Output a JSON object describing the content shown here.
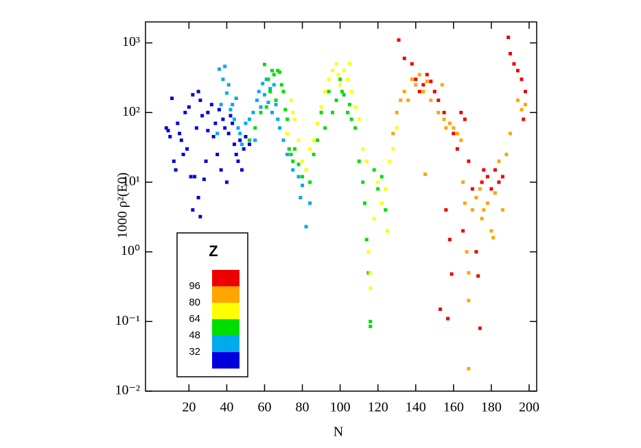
{
  "chart_data": {
    "type": "scatter",
    "x_label": "N",
    "y_label": "1000 ρ²(E0)",
    "log_y": true,
    "xlim": [
      -3,
      204
    ],
    "ylim": [
      0.01,
      2000
    ],
    "xticks": [
      20,
      40,
      60,
      80,
      100,
      120,
      140,
      160,
      180,
      200
    ],
    "yticks": [
      {
        "value": 0.01,
        "label": "10⁻²"
      },
      {
        "value": 0.1,
        "label": "10⁻¹"
      },
      {
        "value": 1,
        "label": "10⁰"
      },
      {
        "value": 10,
        "label": "10¹"
      },
      {
        "value": 100,
        "label": "10²"
      },
      {
        "value": 1000,
        "label": "10³"
      }
    ],
    "colorbar": {
      "title": "Z",
      "ticks": [
        96,
        80,
        64,
        48,
        32
      ]
    },
    "series": [
      {
        "color": "#0000dd",
        "x": [
          8,
          9,
          10,
          11,
          12,
          13,
          14,
          15,
          16,
          17,
          18,
          19,
          20,
          21,
          22,
          22,
          23,
          24,
          25,
          25,
          26,
          26,
          27,
          28,
          29,
          30,
          30,
          32,
          33,
          34,
          35,
          36,
          37,
          38,
          39,
          40,
          41,
          42,
          43,
          44,
          45,
          46,
          47,
          48,
          49,
          50,
          52
        ],
        "values": [
          60,
          55,
          45,
          160,
          20,
          15,
          70,
          50,
          40,
          25,
          100,
          30,
          120,
          12,
          4,
          180,
          12,
          60,
          200,
          6,
          3.2,
          150,
          90,
          11,
          20,
          100,
          55,
          130,
          45,
          70,
          25,
          110,
          15,
          80,
          60,
          10,
          50,
          90,
          70,
          35,
          25,
          20,
          40,
          15,
          30,
          45,
          35
        ]
      },
      {
        "color": "#00aaee",
        "x": [
          35,
          36,
          37,
          38,
          39,
          40,
          41,
          42,
          43,
          44,
          45,
          46,
          47,
          48,
          50,
          52,
          54,
          55,
          56,
          57,
          58,
          59,
          60,
          61,
          62,
          63,
          64,
          65,
          66,
          67,
          68,
          70,
          72,
          75,
          78,
          80,
          82,
          79,
          84
        ],
        "values": [
          50,
          420,
          130,
          300,
          460,
          190,
          250,
          110,
          130,
          80,
          160,
          60,
          50,
          35,
          70,
          80,
          100,
          40,
          150,
          200,
          120,
          260,
          180,
          300,
          140,
          220,
          100,
          250,
          130,
          80,
          60,
          40,
          25,
          15,
          12,
          9,
          2.3,
          6,
          5
        ]
      },
      {
        "color": "#00dd00",
        "x": [
          52,
          55,
          58,
          60,
          61,
          62,
          63,
          64,
          65,
          66,
          67,
          68,
          69,
          70,
          71,
          72,
          73,
          74,
          75,
          76,
          78,
          80,
          82,
          84,
          86,
          88,
          90,
          92,
          94,
          96,
          98,
          100,
          101,
          102,
          104,
          105,
          106,
          108,
          110,
          112,
          113,
          114,
          115,
          116,
          116,
          118,
          120,
          122,
          124
        ],
        "values": [
          40,
          60,
          100,
          490,
          120,
          300,
          200,
          400,
          350,
          150,
          400,
          380,
          250,
          200,
          110,
          80,
          30,
          25,
          20,
          30,
          18,
          12,
          15,
          10,
          25,
          40,
          100,
          60,
          200,
          100,
          150,
          300,
          200,
          180,
          100,
          130,
          80,
          60,
          20,
          10,
          5,
          1.5,
          0.5,
          0.1,
          0.085,
          15,
          8,
          12,
          4
        ]
      },
      {
        "color": "#ffff00",
        "x": [
          72,
          74,
          75,
          76,
          78,
          80,
          82,
          84,
          86,
          88,
          90,
          92,
          94,
          96,
          98,
          99,
          100,
          102,
          104,
          105,
          106,
          108,
          110,
          112,
          114,
          115,
          116,
          116,
          118,
          120,
          122,
          124,
          125,
          126,
          128,
          130
        ],
        "values": [
          50,
          150,
          100,
          80,
          40,
          20,
          15,
          30,
          40,
          70,
          120,
          200,
          300,
          400,
          500,
          350,
          250,
          400,
          300,
          500,
          200,
          120,
          80,
          30,
          20,
          1.0,
          0.5,
          0.3,
          3,
          10,
          5,
          8,
          2,
          20,
          30,
          60
        ]
      },
      {
        "color": "#ffa500",
        "x": [
          128,
          130,
          132,
          134,
          136,
          138,
          140,
          142,
          144,
          145,
          146,
          148,
          150,
          152,
          154,
          155,
          156,
          158,
          160,
          162,
          164,
          165,
          166,
          167,
          168,
          168,
          168,
          170,
          172,
          174,
          175,
          176,
          178,
          180,
          181,
          182,
          184,
          186,
          188,
          190,
          194,
          198,
          196
        ],
        "values": [
          50,
          100,
          150,
          200,
          150,
          300,
          250,
          350,
          200,
          13,
          280,
          150,
          200,
          100,
          250,
          80,
          60,
          70,
          60,
          50,
          40,
          10,
          5,
          1.0,
          0.5,
          0.2,
          0.021,
          4,
          6,
          8,
          3,
          4,
          5,
          2,
          1.6,
          7,
          20,
          4,
          25,
          50,
          150,
          130,
          110
        ]
      },
      {
        "color": "#ee0000",
        "x": [
          131,
          134,
          138,
          140,
          142,
          144,
          146,
          148,
          150,
          152,
          153,
          155,
          156,
          157,
          158,
          159,
          160,
          162,
          164,
          165,
          166,
          168,
          170,
          172,
          173,
          174,
          175,
          176,
          178,
          180,
          182,
          184,
          186,
          189,
          190,
          192,
          194,
          196,
          198,
          197
        ],
        "values": [
          1100,
          600,
          500,
          300,
          200,
          250,
          350,
          280,
          200,
          150,
          0.15,
          100,
          4,
          0.11,
          1.5,
          0.48,
          50,
          30,
          100,
          2,
          80,
          20,
          8,
          1.0,
          0.45,
          0.08,
          10,
          15,
          12,
          8,
          15,
          10,
          12,
          1200,
          700,
          500,
          400,
          300,
          200,
          80
        ]
      }
    ]
  }
}
